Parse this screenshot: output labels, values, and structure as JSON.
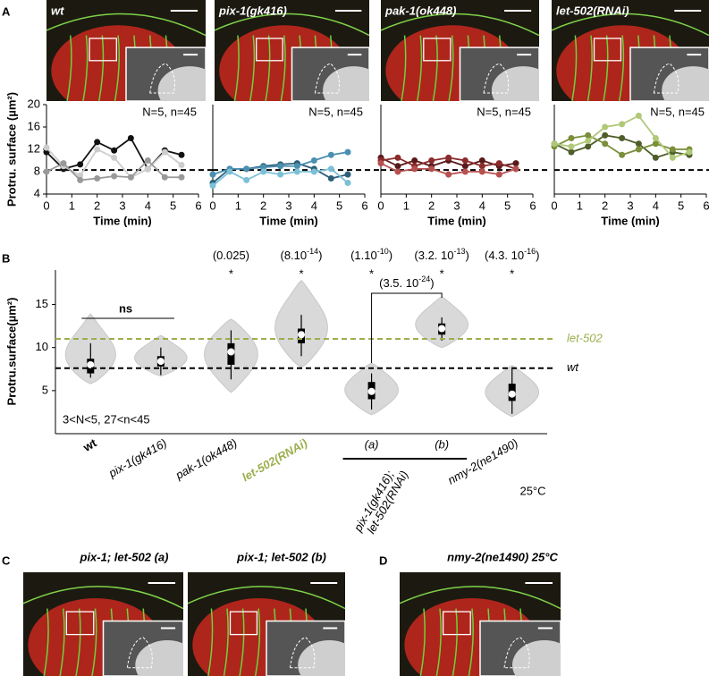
{
  "panel_labels": [
    "A",
    "B",
    "C",
    "D"
  ],
  "images_a": [
    "wt",
    "pix-1(gk416)",
    "pak-1(ok448)",
    "let-502(RNAi)"
  ],
  "images_cd": [
    "pix-1; let-502 (a)",
    "pix-1; let-502 (b)",
    "nmy-2(ne1490) 25°C"
  ],
  "chart_data": [
    {
      "type": "line",
      "ylabel": "Protru. surface (µm²)",
      "xlabel": "Time (min)",
      "annotation": "N=5, n=45",
      "x": [
        0,
        0.67,
        1.33,
        2,
        2.67,
        3.33,
        4,
        4.67,
        5.33
      ],
      "xlim": [
        0,
        6
      ],
      "xticks": [
        0,
        1,
        2,
        3,
        4,
        5,
        6
      ],
      "ylim": [
        4,
        20
      ],
      "yticks": [
        4,
        8,
        12,
        16,
        20
      ],
      "reference_line": 8.3,
      "series": [
        {
          "color": "#111111",
          "values": [
            11.5,
            8.5,
            9.3,
            13.3,
            11.8,
            14,
            8.5,
            11.8,
            11
          ]
        },
        {
          "color": "#cccccc",
          "values": [
            12.3,
            9,
            7.3,
            12,
            10.5,
            7,
            8.5,
            11.5,
            9.2
          ]
        },
        {
          "color": "#999999",
          "values": [
            8,
            9.5,
            6.5,
            6.8,
            7.2,
            7,
            10,
            7,
            7
          ]
        }
      ]
    },
    {
      "type": "line",
      "xlabel": "Time (min)",
      "annotation": "N=5, n=45",
      "x": [
        0,
        0.67,
        1.33,
        2,
        2.67,
        3.33,
        4,
        4.67,
        5.33
      ],
      "xlim": [
        0,
        6
      ],
      "xticks": [
        0,
        1,
        2,
        3,
        4,
        5,
        6
      ],
      "ylim": [
        4,
        20
      ],
      "reference_line": 8.3,
      "series": [
        {
          "color": "#2d5f7a",
          "values": [
            6,
            8.5,
            8.5,
            9,
            9.3,
            9.5,
            8.5,
            6.8,
            7.5
          ]
        },
        {
          "color": "#4a90b0",
          "values": [
            7.5,
            8.5,
            8.5,
            8.8,
            9,
            9,
            10,
            11,
            11.5
          ]
        },
        {
          "color": "#7cc0d8",
          "values": [
            5.5,
            8,
            6.5,
            8,
            7.5,
            8,
            8,
            8.5,
            6
          ]
        }
      ]
    },
    {
      "type": "line",
      "xlabel": "Time (min)",
      "annotation": "N=5, n=45",
      "x": [
        0,
        0.67,
        1.33,
        2,
        2.67,
        3.33,
        4,
        4.67,
        5.33
      ],
      "xlim": [
        0,
        6
      ],
      "xticks": [
        0,
        1,
        2,
        3,
        4,
        5,
        6
      ],
      "ylim": [
        4,
        20
      ],
      "reference_line": 8.3,
      "series": [
        {
          "color": "#5b1a1a",
          "values": [
            10.5,
            9,
            10,
            9,
            10,
            9,
            10,
            9,
            9.5
          ]
        },
        {
          "color": "#8b2b2b",
          "values": [
            10,
            10.5,
            9,
            10,
            10.5,
            10,
            9,
            9.5,
            8.5
          ]
        },
        {
          "color": "#b85050",
          "values": [
            9.5,
            8,
            8.5,
            8.5,
            7.5,
            8,
            8,
            7.5,
            8.5
          ]
        }
      ]
    },
    {
      "type": "line",
      "xlabel": "Time (min)",
      "annotation": "N=5, n=45",
      "x": [
        0,
        0.67,
        1.33,
        2,
        2.67,
        3.33,
        4,
        4.67,
        5.33
      ],
      "xlim": [
        0,
        6
      ],
      "xticks": [
        0,
        1,
        2,
        3,
        4,
        5,
        6
      ],
      "ylim": [
        4,
        20
      ],
      "reference_line": 8.3,
      "series": [
        {
          "color": "#4e5e2a",
          "values": [
            13,
            11.5,
            12.5,
            14.5,
            14,
            13,
            10.5,
            11.5,
            11
          ]
        },
        {
          "color": "#7a8f3a",
          "values": [
            12.5,
            14,
            14.5,
            13,
            11,
            12,
            13,
            12,
            12
          ]
        },
        {
          "color": "#b0c878",
          "values": [
            13,
            12.5,
            13.5,
            16,
            16.5,
            18,
            14,
            10.5,
            11.5
          ]
        }
      ]
    },
    {
      "type": "violin",
      "ylabel": "Protru.surface(µm²)",
      "ylim": [
        0,
        19
      ],
      "yticks": [
        5,
        10,
        15
      ],
      "color": "#d9d9d9",
      "categories": [
        "wt",
        "pix-1(gk416)",
        "pak-1(ok448)",
        "let-502(RNAi)",
        "(a)",
        "(b)",
        "nmy-2(ne1490)"
      ],
      "category_colors": [
        "#000000",
        "#000000",
        "#000000",
        "#9aaf4e",
        "#000000",
        "#000000",
        "#000000"
      ],
      "violin_min": [
        5.8,
        6.7,
        4.8,
        7.7,
        2.2,
        10,
        2
      ],
      "violin_max": [
        13.9,
        11.4,
        13.3,
        17.8,
        8.2,
        15.9,
        7.9
      ],
      "whisker_low": [
        6.5,
        6.8,
        6.3,
        9,
        2.8,
        10.8,
        2.3
      ],
      "whisker_high": [
        10.5,
        10,
        12,
        13.8,
        7,
        13.5,
        7.5
      ],
      "q1": [
        7,
        7.8,
        8,
        10.5,
        4,
        11.5,
        3.8
      ],
      "q3": [
        8.7,
        9,
        10.5,
        12.2,
        6,
        12.8,
        5.8
      ],
      "medians": [
        8,
        8.4,
        9.5,
        11.5,
        4.9,
        12.2,
        4.6
      ],
      "reference_lines": [
        {
          "value": 7.6,
          "label": "wt",
          "color": "#000000"
        },
        {
          "value": 11,
          "label": "let-502",
          "color": "#9aaf4e"
        }
      ],
      "ns": "ns",
      "stars": [
        null,
        null,
        "*",
        "*",
        "*",
        "*",
        "*"
      ],
      "p_labels": [
        null,
        null,
        {
          "text": "(0.025)"
        },
        {
          "text": "(8.10",
          "sup": "-14",
          "end": ")"
        },
        {
          "text": "(1.10",
          "sup": "-10",
          "end": ")"
        },
        {
          "text": "(3.2. 10",
          "sup": "-13",
          "end": ")"
        },
        {
          "text": "(4.3. 10",
          "sup": "-16",
          "end": ")"
        }
      ],
      "bracket_label": {
        "text": "(3.5. 10",
        "sup": "-24",
        "end": ")"
      },
      "group_label": [
        "pix-1(gk416);",
        "let-502(RNAi)"
      ],
      "extra_label": "25°C",
      "note": "3<N<5,  27<n<45"
    }
  ]
}
